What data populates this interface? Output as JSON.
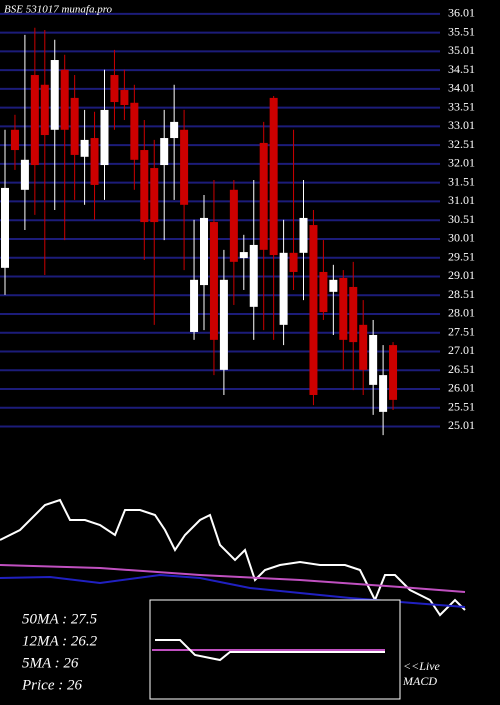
{
  "chart_data": {
    "type": "candlestick",
    "title": "BSE 531017 munafa.pro",
    "open": [
      29.24,
      32.92,
      31.32,
      34.38,
      34.12,
      32.92,
      34.52,
      33.77,
      32.2,
      32.7,
      31.98,
      34.38,
      33.98,
      33.64,
      32.38,
      31.9,
      31.98,
      32.7,
      32.92,
      27.53,
      28.78,
      30.46,
      26.52,
      31.32,
      29.5,
      28.2,
      32.57,
      33.77,
      27.72,
      29.64,
      29.64,
      30.38,
      29.13,
      28.6,
      28.97,
      28.73,
      27.72,
      26.12,
      25.4,
      27.18
    ],
    "high": [
      32.92,
      33.32,
      35.45,
      35.64,
      35.58,
      35.32,
      34.92,
      34.38,
      33.45,
      33.4,
      34.52,
      35.05,
      34.52,
      34.12,
      33.18,
      32.65,
      33.45,
      34.12,
      33.45,
      30.52,
      31.18,
      31.58,
      29.72,
      31.58,
      30.12,
      31.58,
      33.13,
      33.82,
      30.52,
      32.92,
      31.58,
      30.78,
      29.98,
      29.32,
      29.18,
      29.4,
      28.38,
      27.85,
      27.18,
      27.26
    ],
    "low": [
      28.52,
      31.85,
      30.25,
      30.65,
      29.05,
      30.78,
      29.98,
      31.05,
      30.92,
      30.52,
      31.05,
      32.92,
      33.18,
      31.32,
      29.45,
      27.72,
      29.98,
      31.05,
      29.18,
      27.32,
      27.58,
      26.38,
      25.85,
      28.25,
      28.65,
      27.32,
      27.58,
      27.32,
      27.18,
      28.65,
      28.38,
      25.58,
      27.85,
      27.45,
      26.52,
      25.98,
      25.85,
      25.32,
      24.78,
      25.45
    ],
    "close": [
      31.37,
      32.38,
      32.12,
      31.98,
      32.78,
      34.78,
      32.92,
      32.25,
      32.65,
      31.45,
      33.45,
      33.66,
      33.58,
      32.12,
      30.46,
      30.46,
      32.7,
      33.13,
      30.92,
      28.92,
      30.57,
      27.32,
      28.92,
      29.4,
      29.66,
      29.85,
      29.72,
      29.58,
      29.64,
      29.13,
      30.57,
      25.85,
      28.06,
      28.92,
      27.32,
      27.26,
      26.52,
      27.45,
      26.38,
      25.72
    ],
    "up_color": "#ffffff",
    "down_color": "#cc0000",
    "grid_color": "#1c1c7a",
    "ylim": [
      24.65,
      36.38
    ],
    "yticks": [
      36.01,
      35.51,
      35.01,
      34.51,
      34.01,
      33.51,
      33.01,
      32.51,
      32.01,
      31.51,
      31.01,
      30.51,
      30.01,
      29.51,
      29.01,
      28.51,
      28.01,
      27.51,
      27.01,
      26.51,
      26.01,
      25.51,
      25.01
    ],
    "grid": true,
    "info_labels": [
      "50MA : 27.5",
      "12MA : 26.2",
      "5MA : 26",
      "Price   : 26"
    ],
    "macd_labels": [
      "<<Live",
      "MACD"
    ]
  }
}
